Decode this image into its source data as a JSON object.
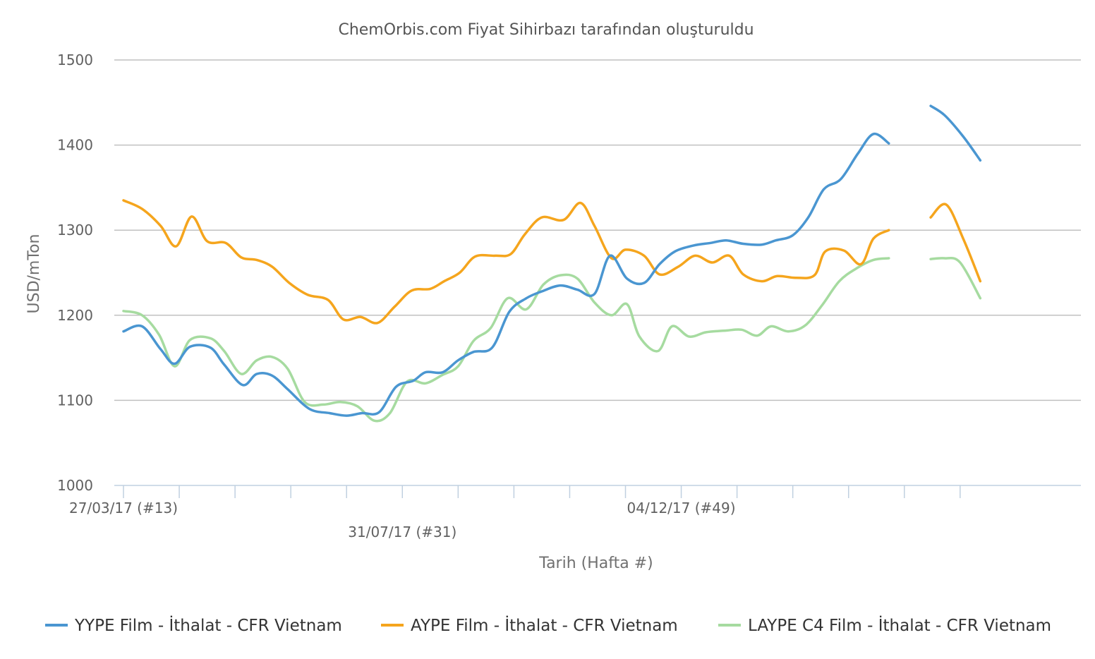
{
  "chart_data": {
    "type": "line",
    "title": "ChemOrbis.com Fiyat Sihirbazı tarafından oluşturuldu",
    "xlabel": "Tarih (Hafta #)",
    "ylabel": "USD/mTon",
    "ylim": [
      1000,
      1500
    ],
    "yticks": [
      1000,
      1100,
      1200,
      1300,
      1400,
      1500
    ],
    "grid": true,
    "legend_position": "bottom",
    "x_labels": [
      {
        "text": "27/03/17 (#13)",
        "week": 0,
        "row": 0
      },
      {
        "text": "31/07/17 (#31)",
        "week": 18,
        "row": 1
      },
      {
        "text": "04/12/17 (#49)",
        "week": 36,
        "row": 0
      }
    ],
    "x_range_weeks": [
      0,
      55.6
    ],
    "tick_interval_weeks": 3.6,
    "series": [
      {
        "name": "YYPE Film - İthalat - CFR Vietnam",
        "color": "#4a96d1",
        "points": [
          [
            0,
            1181
          ],
          [
            1.2,
            1187
          ],
          [
            2.4,
            1160
          ],
          [
            3.3,
            1143
          ],
          [
            4.3,
            1163
          ],
          [
            5.6,
            1162
          ],
          [
            6.5,
            1142
          ],
          [
            7.7,
            1118
          ],
          [
            8.6,
            1131
          ],
          [
            9.6,
            1129
          ],
          [
            10.6,
            1113
          ],
          [
            12.0,
            1090
          ],
          [
            13.3,
            1085
          ],
          [
            14.4,
            1082
          ],
          [
            15.4,
            1085
          ],
          [
            16.5,
            1086
          ],
          [
            17.6,
            1116
          ],
          [
            18.7,
            1123
          ],
          [
            19.5,
            1133
          ],
          [
            20.6,
            1133
          ],
          [
            21.6,
            1147
          ],
          [
            22.6,
            1157
          ],
          [
            23.8,
            1162
          ],
          [
            24.9,
            1204
          ],
          [
            26.0,
            1220
          ],
          [
            27.0,
            1228
          ],
          [
            28.2,
            1235
          ],
          [
            29.3,
            1230
          ],
          [
            30.4,
            1225
          ],
          [
            31.4,
            1270
          ],
          [
            32.5,
            1243
          ],
          [
            33.6,
            1238
          ],
          [
            34.6,
            1260
          ],
          [
            35.6,
            1275
          ],
          [
            36.8,
            1282
          ],
          [
            37.9,
            1285
          ],
          [
            38.9,
            1288
          ],
          [
            40.0,
            1284
          ],
          [
            41.2,
            1283
          ],
          [
            42.1,
            1288
          ],
          [
            43.2,
            1294
          ],
          [
            44.2,
            1315
          ],
          [
            45.2,
            1348
          ],
          [
            46.3,
            1360
          ],
          [
            47.4,
            1390
          ],
          [
            48.4,
            1413
          ],
          [
            49.4,
            1402
          ],
          null,
          [
            52.1,
            1446
          ],
          [
            53.0,
            1435
          ],
          [
            54.2,
            1410
          ],
          [
            55.3,
            1382
          ]
        ]
      },
      {
        "name": "AYPE Film - İthalat - CFR Vietnam",
        "color": "#f5a51d",
        "points": [
          [
            0,
            1335
          ],
          [
            1.2,
            1325
          ],
          [
            2.4,
            1305
          ],
          [
            3.4,
            1281
          ],
          [
            4.4,
            1316
          ],
          [
            5.4,
            1287
          ],
          [
            6.6,
            1285
          ],
          [
            7.6,
            1268
          ],
          [
            8.6,
            1265
          ],
          [
            9.6,
            1257
          ],
          [
            10.7,
            1238
          ],
          [
            11.9,
            1224
          ],
          [
            13.2,
            1218
          ],
          [
            14.2,
            1195
          ],
          [
            15.3,
            1198
          ],
          [
            16.4,
            1191
          ],
          [
            17.5,
            1210
          ],
          [
            18.6,
            1229
          ],
          [
            19.8,
            1231
          ],
          [
            20.7,
            1240
          ],
          [
            21.7,
            1250
          ],
          [
            22.7,
            1269
          ],
          [
            24.0,
            1270
          ],
          [
            25.0,
            1272
          ],
          [
            25.9,
            1295
          ],
          [
            27.0,
            1315
          ],
          [
            28.4,
            1312
          ],
          [
            29.5,
            1332
          ],
          [
            30.4,
            1305
          ],
          [
            31.5,
            1267
          ],
          [
            32.4,
            1277
          ],
          [
            33.6,
            1270
          ],
          [
            34.6,
            1248
          ],
          [
            35.8,
            1257
          ],
          [
            36.9,
            1270
          ],
          [
            38.0,
            1262
          ],
          [
            39.1,
            1270
          ],
          [
            40.0,
            1248
          ],
          [
            41.2,
            1240
          ],
          [
            42.2,
            1246
          ],
          [
            43.4,
            1244
          ],
          [
            44.6,
            1247
          ],
          [
            45.3,
            1275
          ],
          [
            46.5,
            1276
          ],
          [
            47.6,
            1260
          ],
          [
            48.4,
            1290
          ],
          [
            49.4,
            1300
          ],
          null,
          [
            52.1,
            1315
          ],
          [
            53.1,
            1330
          ],
          [
            54.2,
            1290
          ],
          [
            55.3,
            1240
          ]
        ]
      },
      {
        "name": "LAYPE C4 Film - İthalat - CFR Vietnam",
        "color": "#a6dba0",
        "points": [
          [
            0,
            1205
          ],
          [
            1.2,
            1200
          ],
          [
            2.3,
            1177
          ],
          [
            3.3,
            1140
          ],
          [
            4.3,
            1171
          ],
          [
            5.6,
            1173
          ],
          [
            6.5,
            1158
          ],
          [
            7.6,
            1131
          ],
          [
            8.6,
            1147
          ],
          [
            9.6,
            1151
          ],
          [
            10.6,
            1137
          ],
          [
            11.7,
            1098
          ],
          [
            12.9,
            1095
          ],
          [
            14.0,
            1098
          ],
          [
            15.1,
            1093
          ],
          [
            16.2,
            1076
          ],
          [
            17.2,
            1085
          ],
          [
            18.3,
            1122
          ],
          [
            19.5,
            1120
          ],
          [
            20.6,
            1130
          ],
          [
            21.6,
            1140
          ],
          [
            22.6,
            1170
          ],
          [
            23.7,
            1185
          ],
          [
            24.8,
            1220
          ],
          [
            26.0,
            1207
          ],
          [
            27.1,
            1236
          ],
          [
            28.2,
            1247
          ],
          [
            29.3,
            1243
          ],
          [
            30.4,
            1215
          ],
          [
            31.5,
            1200
          ],
          [
            32.5,
            1213
          ],
          [
            33.3,
            1175
          ],
          [
            34.5,
            1158
          ],
          [
            35.4,
            1187
          ],
          [
            36.5,
            1175
          ],
          [
            37.6,
            1180
          ],
          [
            38.9,
            1182
          ],
          [
            39.9,
            1183
          ],
          [
            40.9,
            1176
          ],
          [
            41.8,
            1187
          ],
          [
            42.9,
            1181
          ],
          [
            44.0,
            1188
          ],
          [
            45.1,
            1212
          ],
          [
            46.2,
            1240
          ],
          [
            47.3,
            1255
          ],
          [
            48.4,
            1265
          ],
          [
            49.4,
            1267
          ],
          null,
          [
            52.1,
            1266
          ],
          [
            53.0,
            1267
          ],
          [
            54.0,
            1262
          ],
          [
            55.3,
            1220
          ]
        ]
      }
    ]
  }
}
